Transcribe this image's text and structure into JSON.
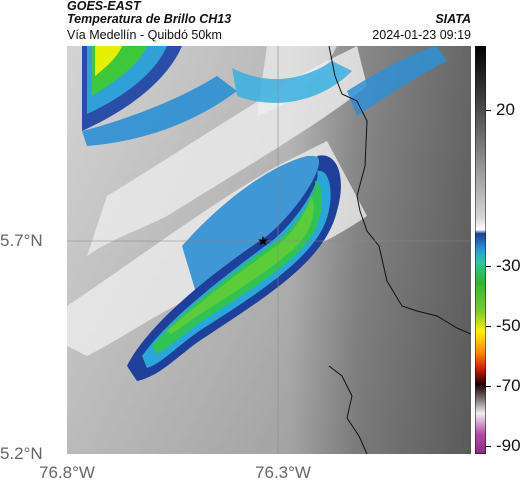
{
  "header": {
    "satellite": "GOES-EAST",
    "product": "Temperatura de Brillo CH13",
    "region": "Vía Medellín - Quibdó 50km",
    "org": "SIATA",
    "datetime": "2024-01-23 09:19"
  },
  "axes": {
    "y_ticks": [
      "5.7°N",
      "5.2°N"
    ],
    "x_ticks": [
      "76.8°W",
      "76.3°W"
    ]
  },
  "colorbar": {
    "ticks": [
      "20",
      "-30",
      "-50",
      "-70",
      "-90"
    ],
    "unit_range": [
      -95,
      35
    ]
  },
  "map": {
    "marker_icon": "star-icon",
    "colors": {
      "land_west": "#cfcfcf",
      "land_east": "#6e6e6e",
      "cloud_white": "#f6f6f6",
      "cold_blue": "#2f8fd4",
      "cold_darkblue": "#1e3f9a",
      "cold_cyan": "#28c4e0",
      "core_green": "#37c42a",
      "core_lightgreen": "#63d23c"
    }
  }
}
